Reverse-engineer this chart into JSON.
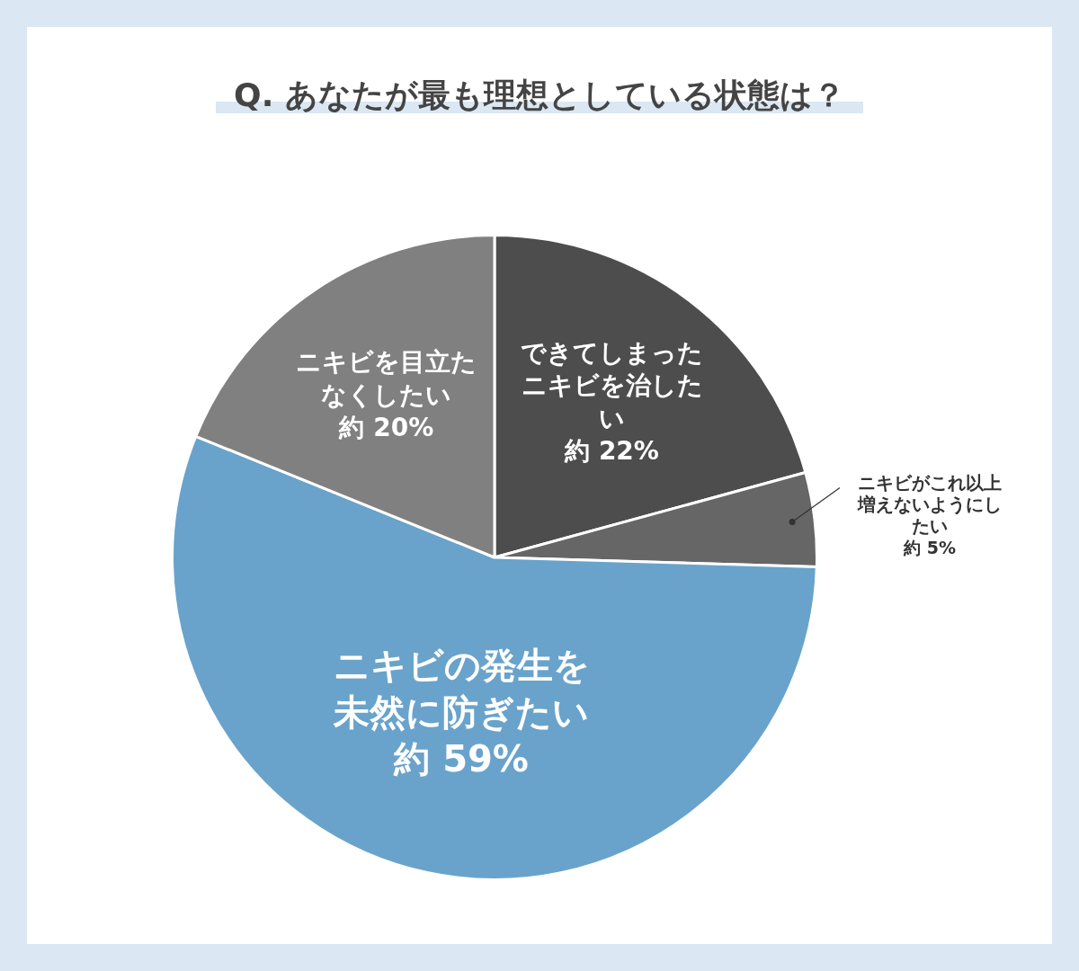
{
  "chart_data": {
    "type": "pie",
    "title": "Q. あなたが最も理想としている状態は？",
    "categories": [
      "できてしまったニキビを治したい",
      "ニキビがこれ以上増えないようにしたい",
      "ニキビの発生を未然に防ぎたい",
      "ニキビを目立たなくしたい"
    ],
    "values": [
      22,
      5,
      59,
      20
    ],
    "value_labels": [
      "約 22%",
      "約 5%",
      "約 59%",
      "約 20%"
    ],
    "colors": [
      "#4d4d4d",
      "#666666",
      "#69a3cb",
      "#808080"
    ],
    "legend": false
  }
}
